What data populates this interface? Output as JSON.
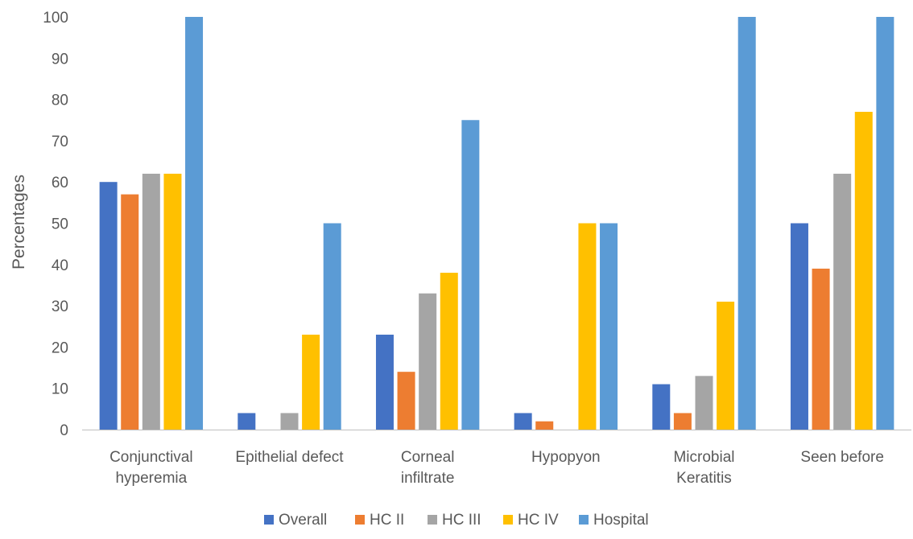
{
  "chart_data": {
    "type": "bar",
    "categories": [
      [
        "Conjunctival",
        "hyperemia"
      ],
      [
        "Epithelial defect"
      ],
      [
        "Corneal",
        "infiltrate"
      ],
      [
        "Hypopyon"
      ],
      [
        "Microbial",
        "Keratitis"
      ],
      [
        "Seen before"
      ]
    ],
    "series": [
      {
        "name": "Overall",
        "color": "#4472C4",
        "values": [
          60,
          4,
          23,
          4,
          11,
          50
        ]
      },
      {
        "name": "HC II",
        "color": "#ED7D31",
        "values": [
          57,
          0,
          14,
          2,
          4,
          39
        ]
      },
      {
        "name": "HC III",
        "color": "#A5A5A5",
        "values": [
          62,
          4,
          33,
          0,
          13,
          62
        ]
      },
      {
        "name": "HC IV",
        "color": "#FFC000",
        "values": [
          62,
          23,
          38,
          50,
          31,
          77
        ]
      },
      {
        "name": "Hospital",
        "color": "#5B9BD5",
        "values": [
          100,
          50,
          75,
          50,
          100,
          100
        ]
      }
    ],
    "title": "",
    "xlabel": "",
    "ylabel": "Percentages",
    "ylim": [
      0,
      100
    ],
    "yticks": [
      0,
      10,
      20,
      30,
      40,
      50,
      60,
      70,
      80,
      90,
      100
    ],
    "grid": false,
    "legend_position": "bottom"
  }
}
